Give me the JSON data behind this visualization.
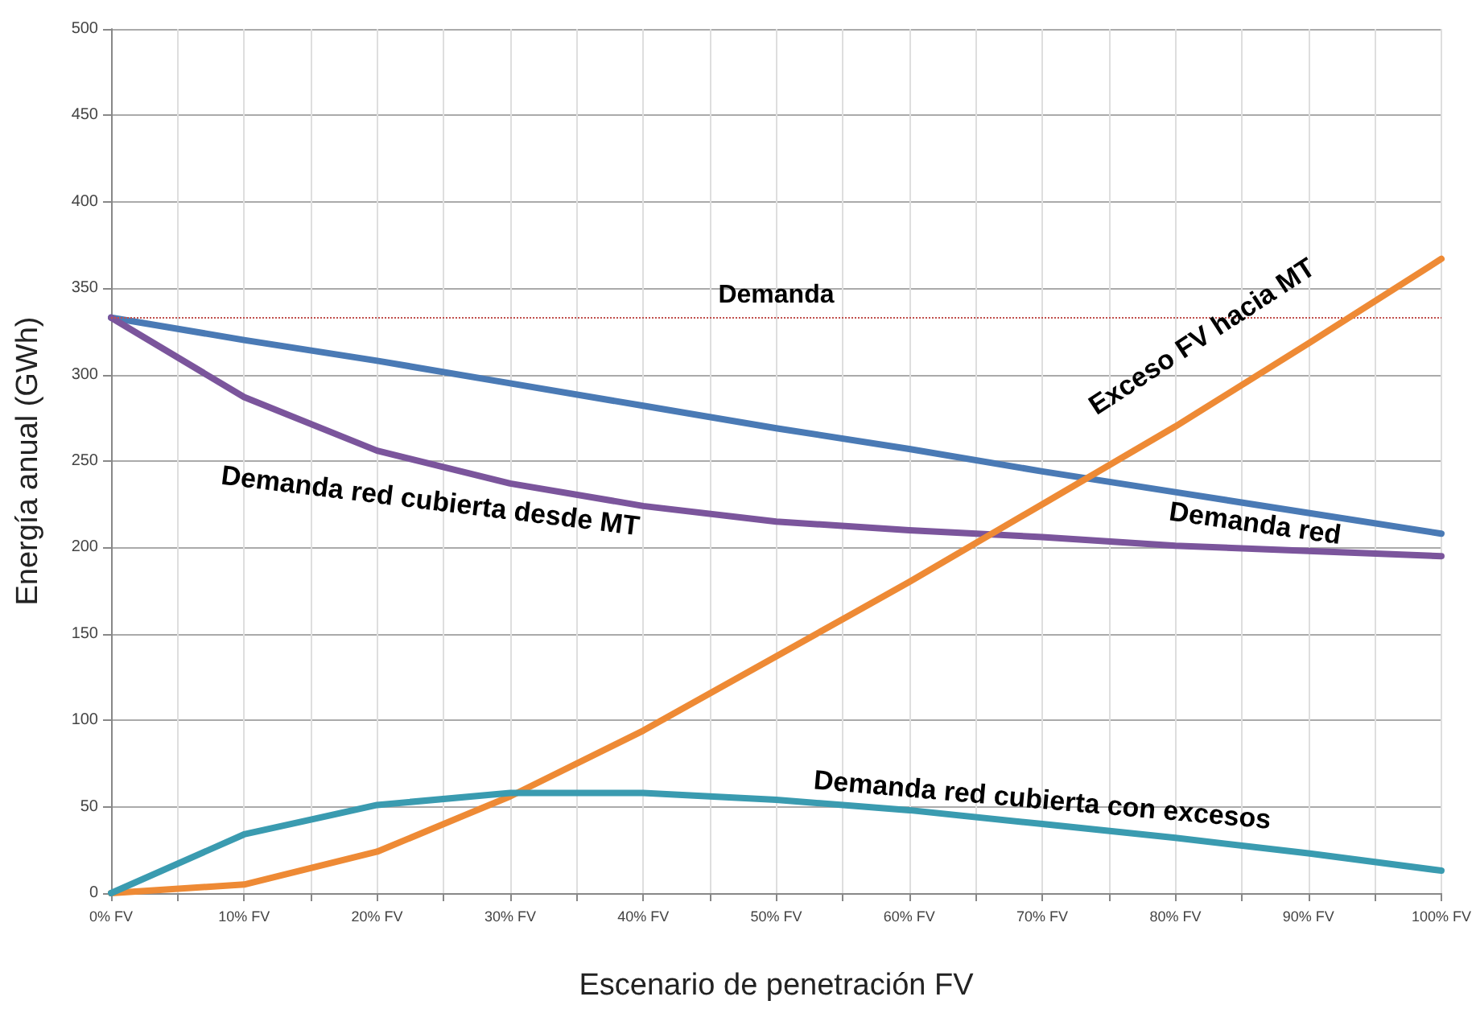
{
  "chart_data": {
    "type": "line",
    "xlabel": "Escenario de penetración FV",
    "ylabel": "Energía anual (GWh)",
    "x": [
      0,
      10,
      20,
      30,
      40,
      50,
      60,
      70,
      80,
      90,
      100
    ],
    "xlim": [
      0,
      100
    ],
    "xticks": [
      {
        "value": 0,
        "label": "0% FV"
      },
      {
        "value": 5,
        "label": null
      },
      {
        "value": 10,
        "label": "10% FV"
      },
      {
        "value": 15,
        "label": null
      },
      {
        "value": 20,
        "label": "20% FV"
      },
      {
        "value": 25,
        "label": null
      },
      {
        "value": 30,
        "label": "30% FV"
      },
      {
        "value": 35,
        "label": null
      },
      {
        "value": 40,
        "label": "40% FV"
      },
      {
        "value": 45,
        "label": null
      },
      {
        "value": 50,
        "label": "50% FV"
      },
      {
        "value": 55,
        "label": null
      },
      {
        "value": 60,
        "label": "60% FV"
      },
      {
        "value": 65,
        "label": null
      },
      {
        "value": 70,
        "label": "70% FV"
      },
      {
        "value": 75,
        "label": null
      },
      {
        "value": 80,
        "label": "80% FV"
      },
      {
        "value": 85,
        "label": null
      },
      {
        "value": 90,
        "label": "90% FV"
      },
      {
        "value": 95,
        "label": null
      },
      {
        "value": 100,
        "label": "100% FV"
      }
    ],
    "ylim": [
      0,
      500
    ],
    "yticks": [
      0,
      50,
      100,
      150,
      200,
      250,
      300,
      350,
      400,
      450,
      500
    ],
    "series": [
      {
        "name": "Demanda red",
        "color": "#4a7ab5",
        "values": [
          333,
          320,
          308,
          295,
          282,
          269,
          257,
          244,
          232,
          220,
          208
        ]
      },
      {
        "name": "Demanda red cubierta desde MT",
        "color": "#7b559c",
        "values": [
          333,
          287,
          256,
          237,
          224,
          215,
          210,
          206,
          201,
          198,
          195
        ]
      },
      {
        "name": "Exceso FV hacia MT",
        "color": "#ee8a35",
        "values": [
          0,
          5,
          24,
          56,
          94,
          137,
          180,
          225,
          270,
          318,
          367
        ]
      },
      {
        "name": "Demanda red cubierta con excesos",
        "color": "#3a9bb0",
        "values": [
          0,
          34,
          51,
          58,
          58,
          54,
          48,
          40,
          32,
          23,
          13
        ]
      }
    ],
    "ref_lines": [
      {
        "axis": "y",
        "value": 333,
        "label": "Demanda",
        "color": "#c0504d",
        "line_style": "dotted"
      }
    ],
    "grid": true,
    "legend": false,
    "marker": "none",
    "line_style": "solid"
  }
}
